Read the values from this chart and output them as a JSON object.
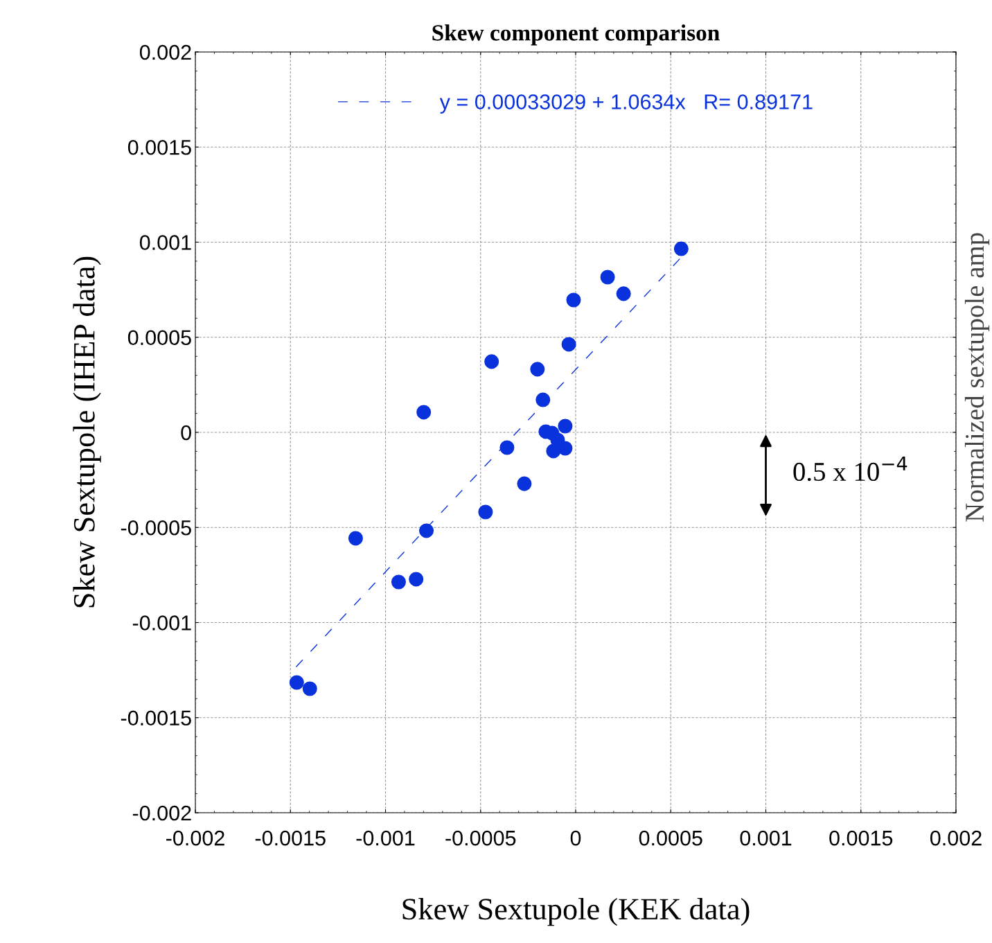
{
  "chart_data": {
    "type": "scatter",
    "title": "Skew component comparison",
    "xlabel": "Skew Sextupole (KEK data)",
    "ylabel": "Skew Sextupole (IHEP data)",
    "series": [
      {
        "color": "#0a32dc",
        "marker": "circle",
        "x": [
          -0.001467,
          -0.001398,
          -0.001157,
          -0.000931,
          -0.000839,
          -0.000785,
          -0.000799,
          -0.000474,
          -0.000442,
          -0.000361,
          -0.00027,
          -0.000201,
          -0.000172,
          -0.000157,
          -0.000124,
          -9.5e-05,
          -0.000117,
          -5.5e-05,
          -5.5e-05,
          -3.6e-05,
          -1.1e-05,
          0.000168,
          0.000252,
          0.000555
        ],
        "values": [
          -0.001315,
          -0.001348,
          -0.000557,
          -0.000787,
          -0.000772,
          -0.000517,
          0.000106,
          -0.000419,
          0.000372,
          -8e-05,
          -0.00027,
          0.000332,
          0.000171,
          4e-06,
          -4e-06,
          -4e-05,
          -9.8e-05,
          -8.4e-05,
          3.3e-05,
          0.000463,
          0.000696,
          0.000816,
          0.000729,
          0.000965
        ]
      },
      {
        "type": "line",
        "name": "y = 0.00033029 + 1.0634x   R= 0.89171",
        "color": "#0a32dc",
        "line_style": "dashed",
        "x": [
          -0.00147,
          0.00055
        ],
        "values": [
          -0.001233,
          0.000915
        ]
      }
    ],
    "xlim": [
      -0.002,
      0.002
    ],
    "ylim": [
      -0.002,
      0.002
    ],
    "xticks": [
      -0.002,
      -0.0015,
      -0.001,
      -0.0005,
      0,
      0.0005,
      0.001,
      0.0015,
      0.002
    ],
    "yticks": [
      -0.002,
      -0.0015,
      -0.001,
      -0.0005,
      0,
      0.0005,
      0.001,
      0.0015,
      0.002
    ],
    "grid": true,
    "legend": "top",
    "annotations": [
      "0.5 x 10$^{−4}$",
      "Normalized sextupole amp"
    ]
  }
}
